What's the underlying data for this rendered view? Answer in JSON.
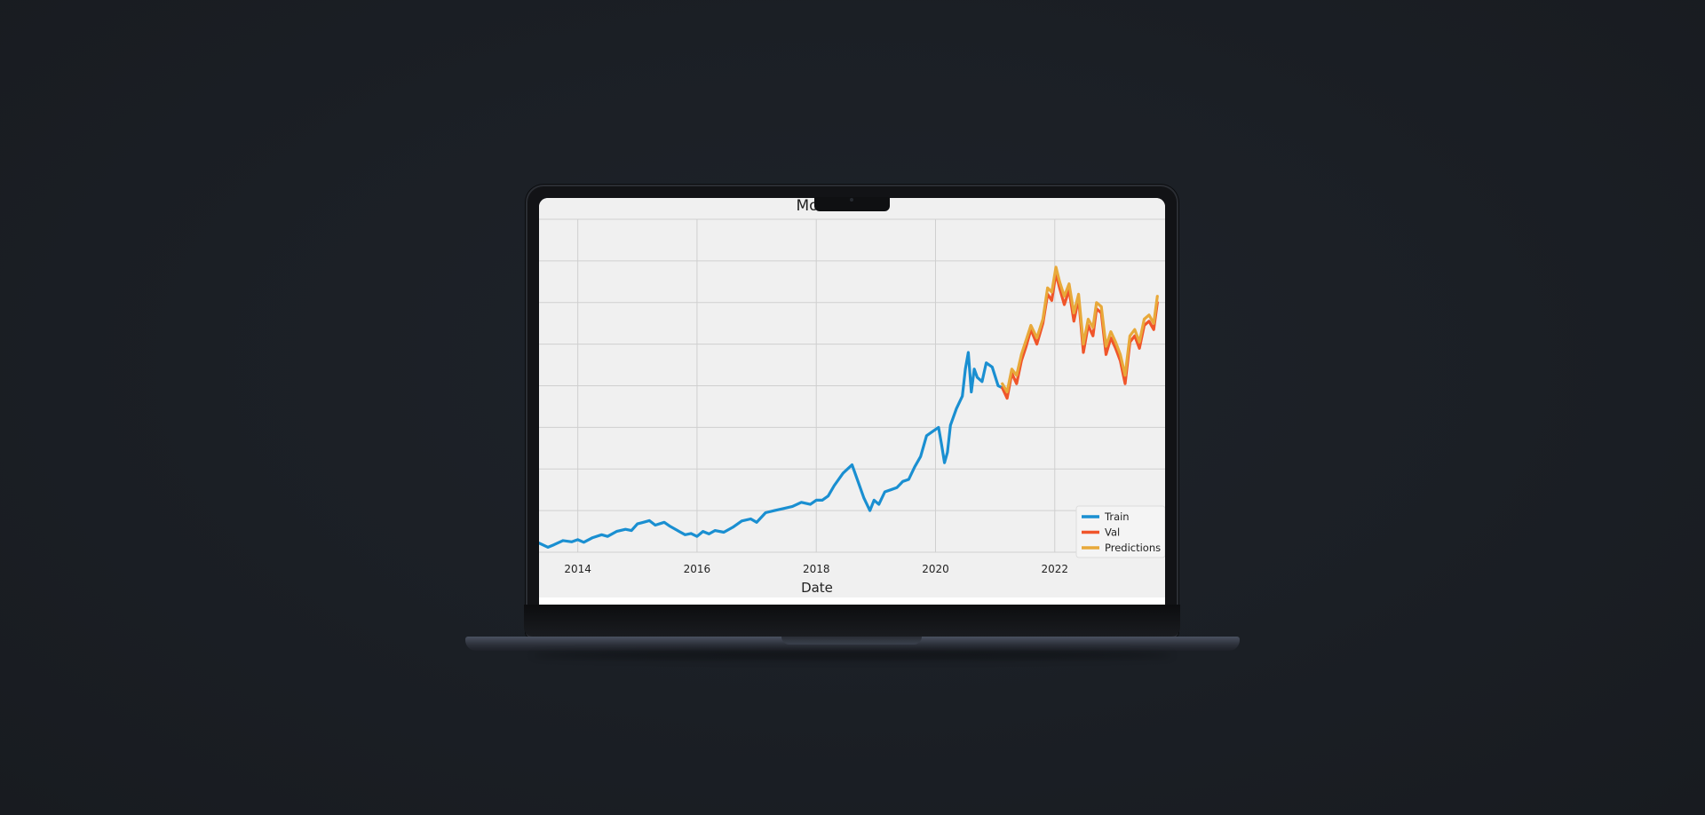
{
  "chart_data": {
    "type": "line",
    "title": "Model",
    "xlabel": "Date",
    "ylabel": "",
    "x_unit": "year",
    "xlim": [
      2013.35,
      2023.85
    ],
    "ylim": [
      0,
      8
    ],
    "x_ticks": [
      2014,
      2016,
      2018,
      2020,
      2022
    ],
    "x_tick_labels": [
      "2014",
      "2016",
      "2018",
      "2020",
      "2022"
    ],
    "grid": true,
    "legend_position": "lower-right",
    "series": [
      {
        "name": "Train",
        "color": "#1a8fd1",
        "x": [
          2013.35,
          2013.5,
          2013.6,
          2013.75,
          2013.9,
          2014.0,
          2014.1,
          2014.25,
          2014.4,
          2014.5,
          2014.65,
          2014.8,
          2014.9,
          2015.0,
          2015.1,
          2015.2,
          2015.3,
          2015.45,
          2015.55,
          2015.7,
          2015.8,
          2015.9,
          2016.0,
          2016.1,
          2016.2,
          2016.3,
          2016.45,
          2016.6,
          2016.75,
          2016.9,
          2017.0,
          2017.15,
          2017.3,
          2017.45,
          2017.6,
          2017.75,
          2017.9,
          2018.0,
          2018.1,
          2018.2,
          2018.3,
          2018.45,
          2018.6,
          2018.7,
          2018.8,
          2018.9,
          2018.97,
          2019.05,
          2019.15,
          2019.25,
          2019.35,
          2019.45,
          2019.55,
          2019.65,
          2019.75,
          2019.85,
          2019.95,
          2020.05,
          2020.1,
          2020.15,
          2020.2,
          2020.25,
          2020.35,
          2020.45,
          2020.5,
          2020.55,
          2020.6,
          2020.65,
          2020.7,
          2020.78,
          2020.85,
          2020.95,
          2021.05,
          2021.12
        ],
        "y": [
          0.22,
          0.12,
          0.18,
          0.28,
          0.25,
          0.3,
          0.24,
          0.35,
          0.42,
          0.38,
          0.5,
          0.55,
          0.52,
          0.68,
          0.72,
          0.76,
          0.65,
          0.72,
          0.62,
          0.5,
          0.42,
          0.45,
          0.38,
          0.5,
          0.44,
          0.52,
          0.48,
          0.6,
          0.75,
          0.8,
          0.72,
          0.95,
          1.0,
          1.05,
          1.1,
          1.2,
          1.15,
          1.25,
          1.25,
          1.35,
          1.6,
          1.9,
          2.1,
          1.7,
          1.3,
          1.0,
          1.25,
          1.15,
          1.45,
          1.5,
          1.55,
          1.7,
          1.75,
          2.05,
          2.3,
          2.8,
          2.9,
          3.0,
          2.6,
          2.15,
          2.4,
          3.05,
          3.45,
          3.75,
          4.4,
          4.8,
          3.85,
          4.4,
          4.2,
          4.1,
          4.55,
          4.45,
          4.0,
          3.95
        ]
      },
      {
        "name": "Val",
        "color": "#f0552a",
        "x": [
          2021.12,
          2021.2,
          2021.28,
          2021.36,
          2021.44,
          2021.52,
          2021.6,
          2021.7,
          2021.8,
          2021.88,
          2021.95,
          2022.02,
          2022.08,
          2022.16,
          2022.24,
          2022.32,
          2022.4,
          2022.48,
          2022.56,
          2022.64,
          2022.7,
          2022.78,
          2022.86,
          2022.94,
          2023.02,
          2023.1,
          2023.18,
          2023.26,
          2023.34,
          2023.42,
          2023.5,
          2023.58,
          2023.66,
          2023.72
        ],
        "y": [
          3.95,
          3.7,
          4.3,
          4.05,
          4.6,
          4.95,
          5.35,
          5.0,
          5.5,
          6.2,
          6.05,
          6.7,
          6.35,
          5.95,
          6.3,
          5.55,
          6.1,
          4.8,
          5.45,
          5.2,
          5.85,
          5.75,
          4.75,
          5.15,
          4.9,
          4.6,
          4.05,
          5.05,
          5.2,
          4.9,
          5.45,
          5.55,
          5.35,
          6.0
        ]
      },
      {
        "name": "Predictions",
        "color": "#e8a93a",
        "x": [
          2021.12,
          2021.2,
          2021.28,
          2021.36,
          2021.44,
          2021.52,
          2021.6,
          2021.7,
          2021.8,
          2021.88,
          2021.95,
          2022.02,
          2022.08,
          2022.16,
          2022.24,
          2022.32,
          2022.4,
          2022.48,
          2022.56,
          2022.64,
          2022.7,
          2022.78,
          2022.86,
          2022.94,
          2023.02,
          2023.1,
          2023.18,
          2023.26,
          2023.34,
          2023.42,
          2023.5,
          2023.58,
          2023.66,
          2023.72
        ],
        "y": [
          4.05,
          3.85,
          4.4,
          4.25,
          4.75,
          5.1,
          5.45,
          5.15,
          5.6,
          6.35,
          6.25,
          6.85,
          6.5,
          6.15,
          6.45,
          5.75,
          6.2,
          5.0,
          5.6,
          5.4,
          6.0,
          5.9,
          4.95,
          5.3,
          5.05,
          4.75,
          4.25,
          5.2,
          5.35,
          5.05,
          5.6,
          5.7,
          5.5,
          6.15
        ]
      }
    ]
  }
}
